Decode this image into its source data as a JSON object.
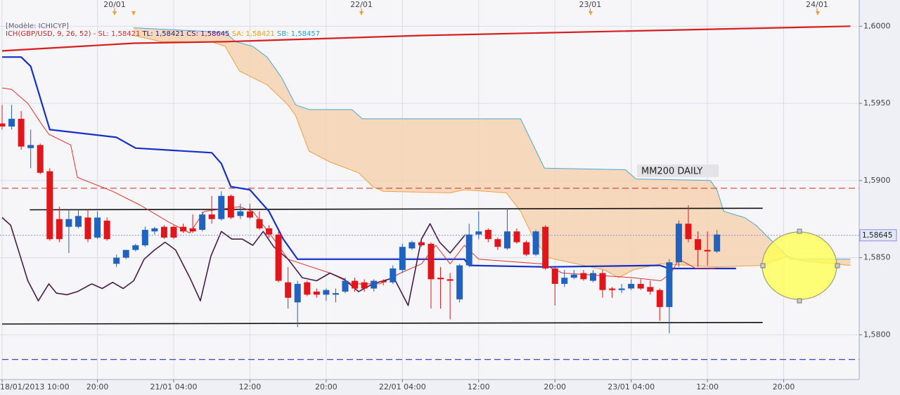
{
  "chart_data": {
    "type": "candlestick",
    "model_label": "[Modèle: ICHICYP]",
    "legend_items": [
      {
        "text": "ICH(GBP/USD, 9, 26, 52)  -",
        "color": "#c62828"
      },
      {
        "text": "SL: 1,58421",
        "color": "#d32f2f"
      },
      {
        "text": "TL: 1,58421",
        "color": "#1a237e"
      },
      {
        "text": "CS: 1,58645",
        "color": "#4a148c"
      },
      {
        "text": "SA: 1,58421",
        "color": "#f39c12"
      },
      {
        "text": "SB: 1,58457",
        "color": "#2a9fd0"
      }
    ],
    "annotation": "MM200 DAILY",
    "up_color": "#1f62c0",
    "down_color": "#e0161b",
    "xlim": [
      0,
      90
    ],
    "ylim": [
      1.5771,
      1.6017
    ],
    "grid": true,
    "yticks": [
      {
        "value": 1.58,
        "label": "1,5800"
      },
      {
        "value": 1.585,
        "label": "1,5850"
      },
      {
        "value": 1.59,
        "label": "1,5900"
      },
      {
        "value": 1.595,
        "label": "1,5950"
      },
      {
        "value": 1.6,
        "label": "1,6000"
      }
    ],
    "xticks": [
      {
        "value": 0,
        "label": "18/01/2013 10:00"
      },
      {
        "value": 10,
        "label": "20:00"
      },
      {
        "value": 18,
        "label": "21/01 04:00"
      },
      {
        "value": 26,
        "label": "12:00"
      },
      {
        "value": 34,
        "label": "20:00"
      },
      {
        "value": 42,
        "label": "22/01 04:00"
      },
      {
        "value": 50,
        "label": "12:00"
      },
      {
        "value": 58,
        "label": "20:00"
      },
      {
        "value": 66,
        "label": "23/01 04:00"
      },
      {
        "value": 74,
        "label": "12:00"
      },
      {
        "value": 82,
        "label": "20:00"
      }
    ],
    "top_ticks": [
      {
        "value": 11.8,
        "label": "20/01"
      },
      {
        "value": 37.7,
        "label": "22/01"
      },
      {
        "value": 61.7,
        "label": "23/01"
      },
      {
        "value": 85.5,
        "label": "24/01"
      }
    ],
    "last_price": {
      "value": 1.58645,
      "label": "1,58645"
    },
    "candles": {
      "x": [
        0,
        1,
        2,
        3,
        4,
        5,
        6,
        7,
        8,
        9,
        10,
        11,
        12,
        13,
        14,
        15,
        16,
        17,
        18,
        19,
        20,
        21,
        22,
        23,
        24,
        25,
        26,
        27,
        28,
        29,
        30,
        31,
        32,
        33,
        34,
        35,
        36,
        37,
        38,
        39,
        40,
        41,
        42,
        43,
        44,
        45,
        46,
        47,
        48,
        49,
        50,
        51,
        52,
        53,
        54,
        55,
        56,
        57,
        58,
        59,
        60,
        61,
        62,
        63,
        64,
        65,
        66,
        67,
        68,
        69,
        70,
        71,
        72,
        73,
        74,
        75
      ],
      "open": [
        1.5937,
        1.5935,
        1.594,
        1.5921,
        1.5923,
        1.5906,
        1.5875,
        1.587,
        1.587,
        1.5876,
        1.5863,
        1.5874,
        1.5846,
        1.585,
        1.5855,
        1.5858,
        1.5867,
        1.587,
        1.587,
        1.587,
        1.5869,
        1.5868,
        1.5878,
        1.5875,
        1.589,
        1.5877,
        1.588,
        1.5875,
        1.5869,
        1.5865,
        1.5834,
        1.5821,
        1.5834,
        1.5828,
        1.5826,
        1.5826,
        1.5828,
        1.5835,
        1.5834,
        1.583,
        1.5835,
        1.5834,
        1.5842,
        1.5856,
        1.586,
        1.5859,
        1.5837,
        1.5836,
        1.5823,
        1.5845,
        1.5865,
        1.5868,
        1.5862,
        1.5856,
        1.5867,
        1.586,
        1.5852,
        1.587,
        1.5843,
        1.5833,
        1.5837,
        1.584,
        1.5835,
        1.584,
        1.583,
        1.5829,
        1.583,
        1.5833,
        1.5831,
        1.5829,
        1.5818,
        1.5847,
        1.5872,
        1.5862,
        1.5855,
        1.5854
      ],
      "high": [
        1.5949,
        1.5949,
        1.5945,
        1.5933,
        1.5924,
        1.5908,
        1.5883,
        1.5881,
        1.5881,
        1.5881,
        1.588,
        1.5876,
        1.5852,
        1.5855,
        1.5859,
        1.587,
        1.587,
        1.5871,
        1.5871,
        1.5872,
        1.5878,
        1.588,
        1.589,
        1.5893,
        1.5891,
        1.5885,
        1.5885,
        1.588,
        1.5871,
        1.5867,
        1.5844,
        1.5835,
        1.5835,
        1.583,
        1.583,
        1.583,
        1.5837,
        1.5837,
        1.5836,
        1.5836,
        1.5836,
        1.5845,
        1.5859,
        1.5861,
        1.5861,
        1.586,
        1.5844,
        1.584,
        1.5846,
        1.5872,
        1.588,
        1.5869,
        1.5863,
        1.5882,
        1.5869,
        1.5861,
        1.5868,
        1.5871,
        1.5844,
        1.5842,
        1.5842,
        1.5842,
        1.5842,
        1.5842,
        1.5831,
        1.5833,
        1.5836,
        1.5836,
        1.5835,
        1.583,
        1.5849,
        1.5874,
        1.5884,
        1.5867,
        1.5867,
        1.5868
      ],
      "low": [
        1.5933,
        1.5933,
        1.592,
        1.5908,
        1.5904,
        1.5861,
        1.586,
        1.5853,
        1.5869,
        1.586,
        1.5862,
        1.5861,
        1.5844,
        1.5849,
        1.5854,
        1.5857,
        1.5865,
        1.5862,
        1.5862,
        1.5866,
        1.5866,
        1.5867,
        1.5872,
        1.5874,
        1.5875,
        1.5875,
        1.5875,
        1.5868,
        1.5863,
        1.5834,
        1.5817,
        1.5805,
        1.5825,
        1.5824,
        1.5822,
        1.5821,
        1.5827,
        1.5828,
        1.5828,
        1.5828,
        1.5832,
        1.5833,
        1.584,
        1.5855,
        1.5857,
        1.5817,
        1.5817,
        1.581,
        1.5821,
        1.5844,
        1.5862,
        1.586,
        1.5855,
        1.5855,
        1.5859,
        1.5851,
        1.5851,
        1.5842,
        1.5819,
        1.5831,
        1.5836,
        1.5835,
        1.5834,
        1.5824,
        1.5824,
        1.5827,
        1.5829,
        1.5829,
        1.5826,
        1.5809,
        1.5801,
        1.5844,
        1.586,
        1.5844,
        1.5845,
        1.5853
      ],
      "close": [
        1.5935,
        1.594,
        1.5922,
        1.5923,
        1.5905,
        1.5862,
        1.5862,
        1.5875,
        1.5877,
        1.5862,
        1.5876,
        1.5862,
        1.585,
        1.5855,
        1.5858,
        1.5868,
        1.5869,
        1.5863,
        1.5863,
        1.5867,
        1.5867,
        1.5878,
        1.5875,
        1.589,
        1.5876,
        1.588,
        1.5876,
        1.5869,
        1.5865,
        1.5835,
        1.5824,
        1.5833,
        1.5826,
        1.5826,
        1.5829,
        1.5827,
        1.5835,
        1.583,
        1.583,
        1.5835,
        1.5834,
        1.5843,
        1.5857,
        1.586,
        1.5858,
        1.5836,
        1.5836,
        1.5835,
        1.5845,
        1.5865,
        1.5867,
        1.5862,
        1.5857,
        1.5867,
        1.586,
        1.5852,
        1.5867,
        1.5843,
        1.5833,
        1.5837,
        1.5839,
        1.5836,
        1.584,
        1.5829,
        1.5829,
        1.583,
        1.5833,
        1.583,
        1.5828,
        1.5818,
        1.5847,
        1.5872,
        1.5862,
        1.5855,
        1.5854,
        1.5865
      ]
    },
    "cloud": {
      "color": "#f6d2b3",
      "span_a": {
        "color": "#f0a040",
        "style": "thin",
        "x": [
          13.8,
          16.7,
          21.9,
          23.4,
          24.9,
          27.8,
          30,
          30.8,
          32.2,
          34.4,
          37.4,
          38.9,
          40,
          47,
          48.5,
          52.9,
          54.4,
          55.8,
          57.3,
          63.2,
          64.7,
          66.2,
          69.1,
          75,
          79.8,
          82.4,
          83.8,
          89
        ],
        "values": [
          1.5994,
          1.599,
          1.599,
          1.5987,
          1.5971,
          1.5962,
          1.5949,
          1.5942,
          1.5919,
          1.5912,
          1.5905,
          1.5896,
          1.5893,
          1.5892,
          1.5894,
          1.5892,
          1.588,
          1.5862,
          1.585,
          1.5842,
          1.5837,
          1.5842,
          1.5846,
          1.5844,
          1.5845,
          1.5851,
          1.5848,
          1.5845
        ]
      },
      "span_b": {
        "color": "#4aa8d8",
        "style": "thin",
        "x": [
          13.8,
          23.4,
          24.5,
          26.3,
          27.8,
          29.3,
          30.8,
          32.2,
          36.7,
          37.8,
          54.4,
          56.9,
          65.4,
          66.5,
          74.3,
          75,
          75.7,
          77.9,
          79.1,
          80.9,
          82.7,
          89
        ],
        "values": [
          1.5999,
          1.5996,
          1.599,
          1.5987,
          1.598,
          1.5967,
          1.5949,
          1.5946,
          1.5946,
          1.594,
          1.594,
          1.5908,
          1.5907,
          1.5901,
          1.59,
          1.5894,
          1.588,
          1.5876,
          1.5871,
          1.586,
          1.5849,
          1.5849
        ]
      }
    },
    "lines": [
      {
        "color": "#d81e1e",
        "style": "thick",
        "x": [
          0,
          13.8,
          23.4,
          44,
          89
        ],
        "values": [
          1.5984,
          1.5989,
          1.599,
          1.5994,
          1.6
        ]
      },
      {
        "color": "#e23a2e",
        "style": "dashed",
        "x": [
          0,
          90
        ],
        "values": [
          1.5895,
          1.5895
        ]
      },
      {
        "color": "#111111",
        "style": "medium",
        "x": [
          2.9,
          79.8
        ],
        "values": [
          1.5881,
          1.5882
        ]
      },
      {
        "color": "#111111",
        "style": "medium",
        "x": [
          0,
          79.8
        ],
        "values": [
          1.5807,
          1.5808
        ]
      },
      {
        "color": "#3b46c8",
        "style": "dashed",
        "x": [
          0,
          90
        ],
        "values": [
          1.5784,
          1.5784
        ]
      },
      {
        "color": "#1530c8",
        "style": "thick",
        "x": [
          0,
          2,
          3,
          5,
          12,
          14,
          22,
          23,
          24,
          26,
          28,
          29.5,
          31,
          48.5,
          49,
          57,
          69,
          70,
          77
        ],
        "values": [
          1.598,
          1.598,
          1.5974,
          1.5933,
          1.5928,
          1.5921,
          1.5918,
          1.5911,
          1.5896,
          1.5894,
          1.588,
          1.5862,
          1.5849,
          1.5849,
          1.5845,
          1.5844,
          1.5845,
          1.5843,
          1.5843
        ]
      },
      {
        "color": "#e0302a",
        "style": "thin",
        "x": [
          0,
          1,
          2.7,
          4.2,
          4.9,
          7.2,
          7.9,
          11.6,
          14.5,
          17.5,
          19.7,
          21.2,
          24.9,
          26.3,
          28.5,
          30,
          34.4,
          36.7,
          39.6,
          41.8,
          44,
          45.5,
          47,
          48.5,
          50,
          56.6,
          58.8,
          66.2,
          69.1,
          70.2,
          71,
          72.8,
          74.8
        ],
        "values": [
          1.596,
          1.5959,
          1.595,
          1.5936,
          1.593,
          1.5923,
          1.5902,
          1.5893,
          1.5884,
          1.5873,
          1.5866,
          1.588,
          1.5883,
          1.588,
          1.5862,
          1.5849,
          1.584,
          1.5833,
          1.5833,
          1.584,
          1.5846,
          1.5858,
          1.5846,
          1.5858,
          1.5849,
          1.5846,
          1.584,
          1.5837,
          1.5835,
          1.584,
          1.5849,
          1.5843,
          1.5843
        ]
      },
      {
        "color": "#4a1a4a",
        "style": "medium",
        "x": [
          0,
          0.9,
          2.7,
          3.8,
          4.9,
          5.7,
          6.8,
          7.9,
          9.4,
          10.5,
          11.6,
          12.7,
          13.8,
          14.9,
          16,
          17.1,
          18.2,
          19.7,
          20.8,
          21.9,
          23,
          24.1,
          25.2,
          26.3,
          27.4,
          28.5,
          30,
          31.5,
          33,
          34.4,
          35.9,
          37.4,
          38.9,
          41.1,
          42.6,
          44,
          44.9,
          45.9,
          47,
          48.6
        ],
        "values": [
          1.5876,
          1.5871,
          1.5835,
          1.5822,
          1.5833,
          1.5827,
          1.5826,
          1.5828,
          1.5833,
          1.583,
          1.5834,
          1.583,
          1.5835,
          1.5849,
          1.5855,
          1.586,
          1.5855,
          1.5837,
          1.5822,
          1.5851,
          1.5867,
          1.5862,
          1.5862,
          1.5858,
          1.5867,
          1.5857,
          1.5849,
          1.5837,
          1.5835,
          1.584,
          1.5836,
          1.5828,
          1.5833,
          1.5837,
          1.5819,
          1.5862,
          1.5872,
          1.586,
          1.5853,
          1.5865
        ]
      }
    ]
  }
}
